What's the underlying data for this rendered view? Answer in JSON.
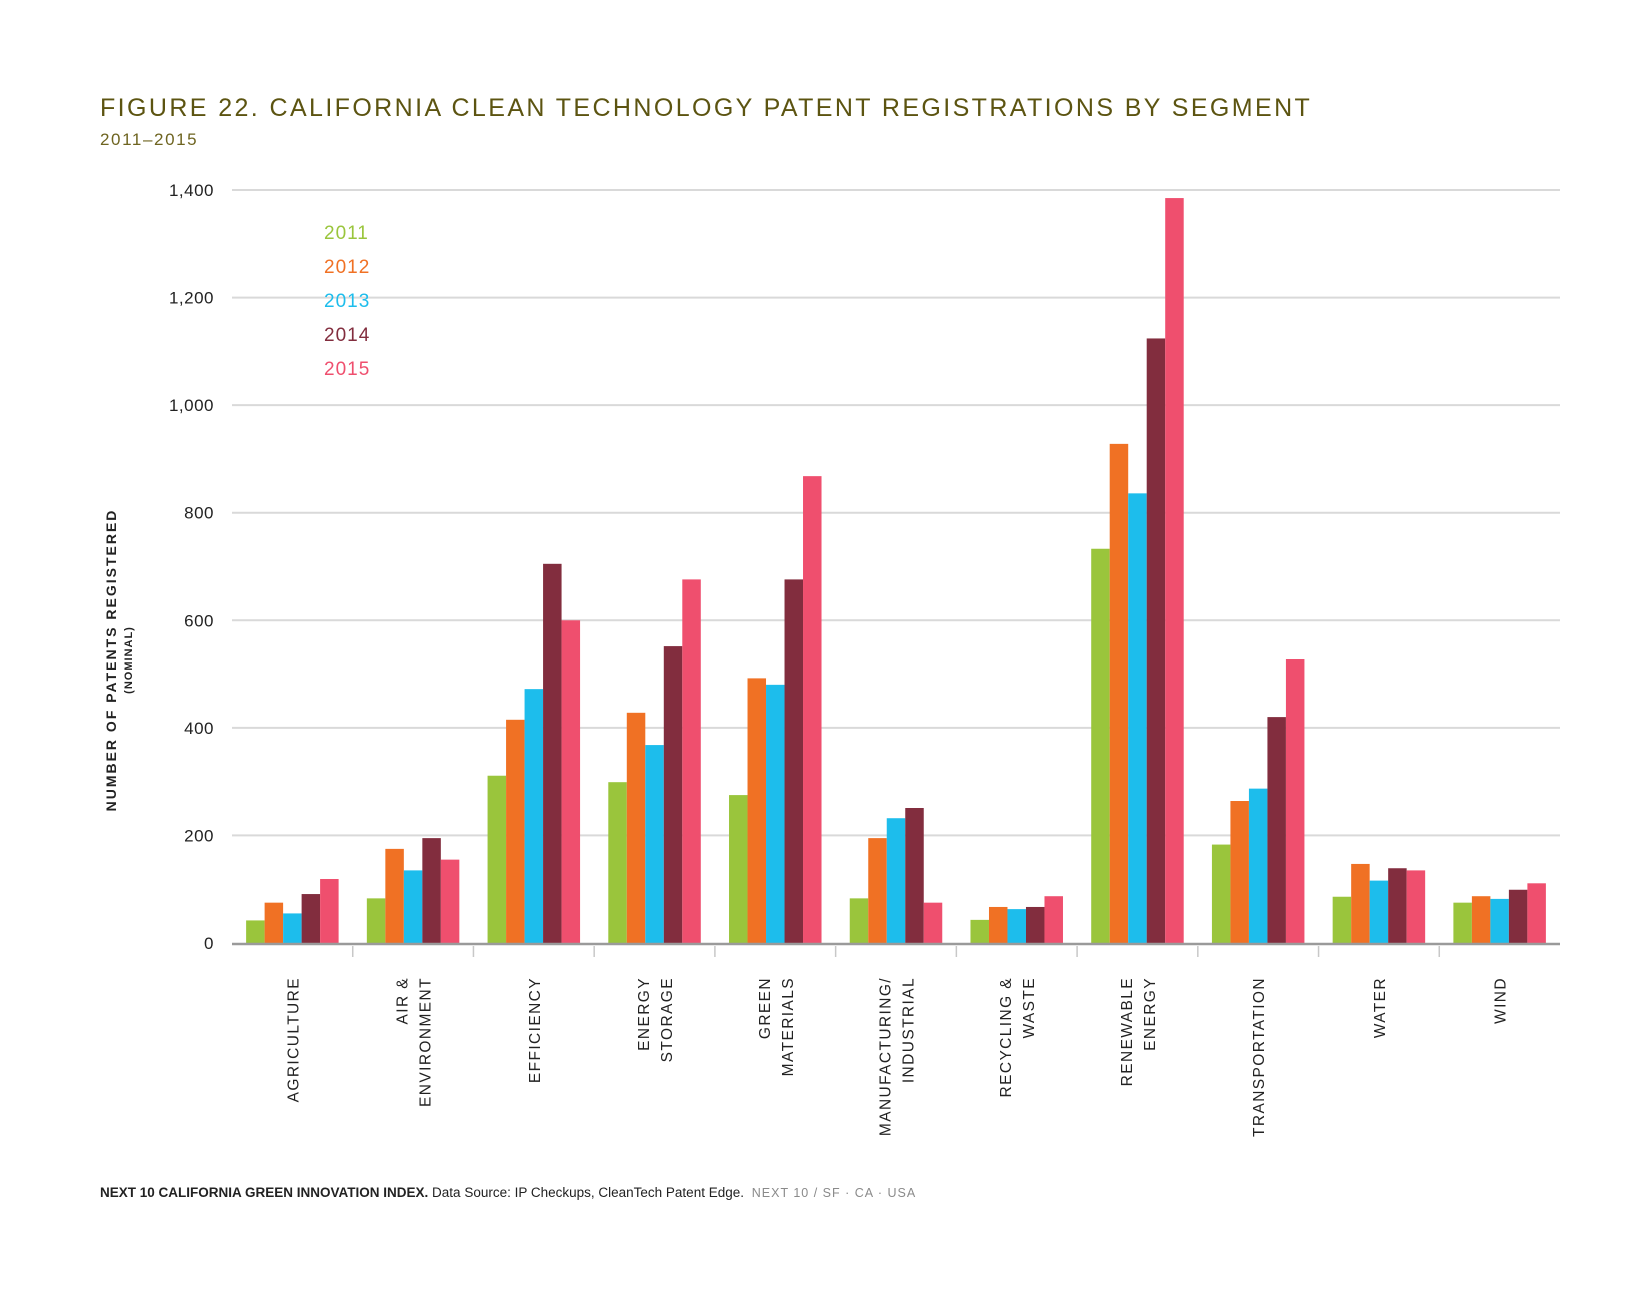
{
  "header": {
    "title": "FIGURE 22. CALIFORNIA CLEAN TECHNOLOGY PATENT REGISTRATIONS BY SEGMENT",
    "subtitle": "2011–2015"
  },
  "footer": {
    "source_bold": "NEXT 10 CALIFORNIA GREEN INNOVATION INDEX.",
    "source_text": "Data Source: IP Checkups, CleanTech Patent Edge.",
    "brand": "NEXT 10  /  SF · CA · USA"
  },
  "chart_data": {
    "type": "bar",
    "title": "FIGURE 22. CALIFORNIA CLEAN TECHNOLOGY PATENT REGISTRATIONS BY SEGMENT",
    "subtitle": "2011–2015",
    "ylabel": "NUMBER OF PATENTS REGISTERED",
    "ylabel_sub": "(NOMINAL)",
    "xlabel": "",
    "ylim": [
      0,
      1400
    ],
    "yticks": [
      0,
      200,
      400,
      600,
      800,
      1000,
      1200,
      1400
    ],
    "ytick_labels": [
      "0",
      "200",
      "400",
      "600",
      "800",
      "1,000",
      "1,200",
      "1,400"
    ],
    "grid": true,
    "legend_position": "top-left",
    "categories": [
      [
        "AGRICULTURE"
      ],
      [
        "AIR &",
        "ENVIRONMENT"
      ],
      [
        "EFFICIENCY"
      ],
      [
        "ENERGY",
        "STORAGE"
      ],
      [
        "GREEN",
        "MATERIALS"
      ],
      [
        "MANUFACTURING/",
        "INDUSTRIAL"
      ],
      [
        "RECYCLING &",
        "WASTE"
      ],
      [
        "RENEWABLE",
        "ENERGY"
      ],
      [
        "TRANSPORTATION"
      ],
      [
        "WATER"
      ],
      [
        "WIND"
      ]
    ],
    "series": [
      {
        "name": "2011",
        "color": "#9ac53c",
        "values": [
          42,
          83,
          311,
          299,
          275,
          83,
          43,
          733,
          183,
          86,
          75
        ]
      },
      {
        "name": "2012",
        "color": "#f07124",
        "values": [
          75,
          175,
          415,
          428,
          492,
          195,
          67,
          928,
          264,
          147,
          87
        ]
      },
      {
        "name": "2013",
        "color": "#1dbdec",
        "values": [
          55,
          135,
          472,
          368,
          480,
          232,
          63,
          836,
          287,
          116,
          82
        ]
      },
      {
        "name": "2014",
        "color": "#822d3e",
        "values": [
          91,
          195,
          705,
          552,
          676,
          251,
          67,
          1124,
          420,
          139,
          99
        ]
      },
      {
        "name": "2015",
        "color": "#ef4f6e",
        "values": [
          119,
          155,
          600,
          676,
          868,
          75,
          87,
          1385,
          528,
          135,
          111
        ]
      }
    ]
  }
}
